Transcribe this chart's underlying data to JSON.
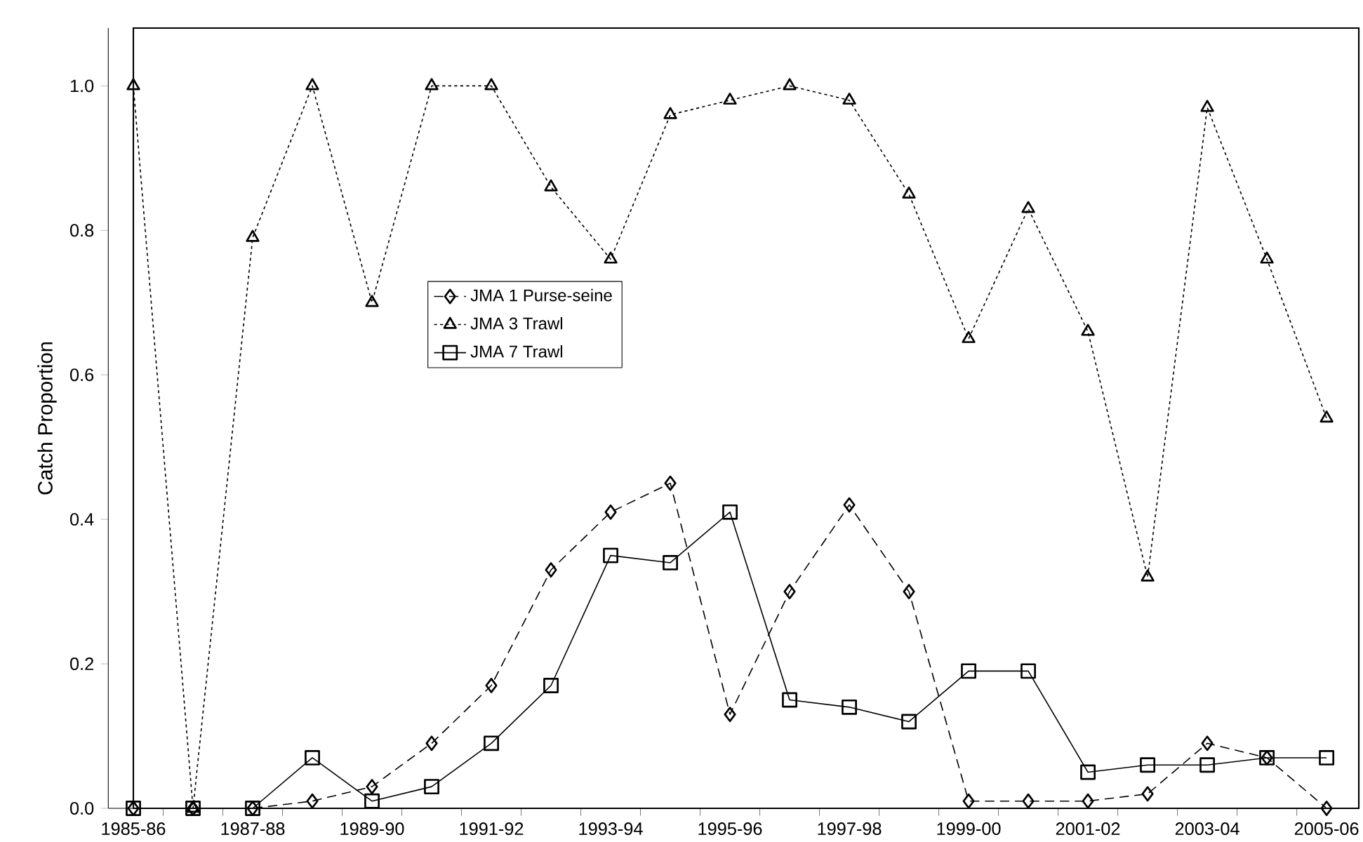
{
  "chart_data": {
    "type": "line",
    "ylabel": "Catch Proportion",
    "categories": [
      "1985-86",
      null,
      "1987-88",
      null,
      "1989-90",
      null,
      "1991-92",
      null,
      "1993-94",
      null,
      "1995-96",
      null,
      "1997-98",
      null,
      "1999-00",
      null,
      "2001-02",
      null,
      "2003-04",
      null,
      "2005-06"
    ],
    "series": [
      {
        "name": "JMA 1 Purse-seine",
        "marker": "diamond",
        "line_style": "dashed",
        "values": [
          0,
          0,
          0,
          0.01,
          0.03,
          0.09,
          0.17,
          0.33,
          0.41,
          0.45,
          0.13,
          0.3,
          0.42,
          0.3,
          0.01,
          0.01,
          0.01,
          0.02,
          0.09,
          0.07,
          0.0
        ]
      },
      {
        "name": "JMA 3 Trawl",
        "marker": "triangle",
        "line_style": "dotted",
        "values": [
          1.0,
          0.0,
          0.79,
          1.0,
          0.7,
          1.0,
          1.0,
          0.86,
          0.76,
          0.96,
          0.98,
          1.0,
          0.98,
          0.85,
          0.65,
          0.83,
          0.66,
          0.32,
          0.97,
          0.76,
          0.54
        ]
      },
      {
        "name": "JMA 7 Trawl",
        "marker": "square",
        "line_style": "solid",
        "values": [
          0,
          0,
          0,
          0.07,
          0.01,
          0.03,
          0.09,
          0.17,
          0.35,
          0.34,
          0.41,
          0.15,
          0.14,
          0.12,
          0.19,
          0.19,
          0.05,
          0.06,
          0.06,
          0.07,
          0.07
        ]
      }
    ],
    "ylim": [
      0,
      1.08
    ],
    "yticks": [
      {
        "value": 0,
        "label": "0.0"
      },
      {
        "value": 0.2,
        "label": "0.2"
      },
      {
        "value": 0.4,
        "label": "0.4"
      },
      {
        "value": 0.6,
        "label": "0.6"
      },
      {
        "value": 0.8,
        "label": "0.8"
      },
      {
        "value": 1.0,
        "label": "1.0"
      }
    ],
    "grid": false,
    "legend": "center"
  }
}
